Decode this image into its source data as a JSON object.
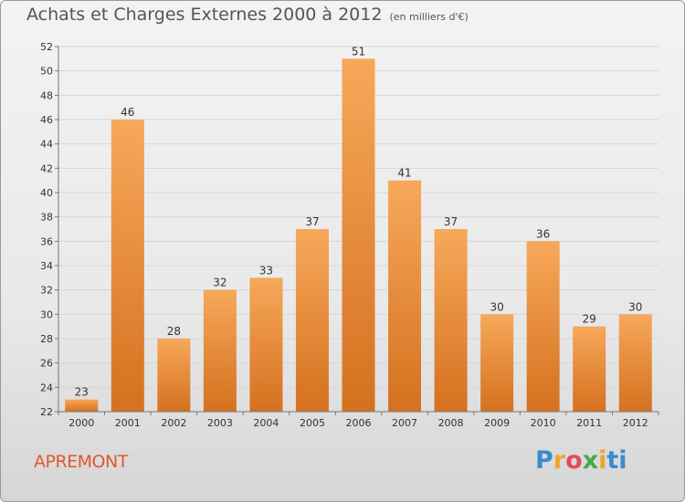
{
  "header": {
    "title": "Achats et Charges Externes 2000 à 2012",
    "subtitle": "(en milliers d'€)"
  },
  "footer": {
    "place": "APREMONT",
    "logo": [
      "P",
      "r",
      "o",
      "x",
      "i",
      "ti"
    ]
  },
  "colors": {
    "bar_top": "#f7a85a",
    "bar_bottom": "#d4711f",
    "grid": "#d6d6d6",
    "place": "#e05a2b"
  },
  "chart_data": {
    "type": "bar",
    "title": "Achats et Charges Externes 2000 à 2012",
    "subtitle": "(en milliers d'€)",
    "categories": [
      "2000",
      "2001",
      "2002",
      "2003",
      "2004",
      "2005",
      "2006",
      "2007",
      "2008",
      "2009",
      "2010",
      "2011",
      "2012"
    ],
    "values": [
      23,
      46,
      28,
      32,
      33,
      37,
      51,
      41,
      37,
      30,
      36,
      29,
      30
    ],
    "ylim": [
      22,
      52
    ],
    "yticks": [
      22,
      24,
      26,
      28,
      30,
      32,
      34,
      36,
      38,
      40,
      42,
      44,
      46,
      48,
      50,
      52
    ],
    "grid": true,
    "legend": "none"
  }
}
